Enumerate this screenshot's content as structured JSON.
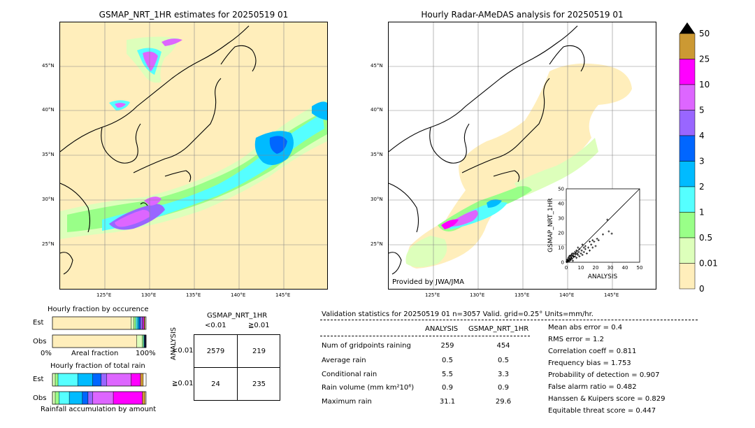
{
  "left_map": {
    "title": "GSMAP_NRT_1HR estimates for 20250519 01",
    "lat_labels": [
      "45°N",
      "40°N",
      "35°N",
      "30°N",
      "25°N"
    ],
    "lon_labels": [
      "125°E",
      "130°E",
      "135°E",
      "140°E",
      "145°E"
    ]
  },
  "right_map": {
    "title": "Hourly Radar-AMeDAS analysis for 20250519 01",
    "lat_labels": [
      "45°N",
      "40°N",
      "35°N",
      "30°N",
      "25°N"
    ],
    "lon_labels": [
      "125°E",
      "130°E",
      "135°E",
      "140°E",
      "145°E"
    ],
    "credit": "Provided by JWA/JMA"
  },
  "colorbar": {
    "labels": [
      "50",
      "25",
      "10",
      "5",
      "4",
      "3",
      "2",
      "1",
      "0.5",
      "0.01",
      "0"
    ],
    "colors": [
      "#cc9933",
      "#ff00ff",
      "#dd66ff",
      "#9966ff",
      "#0066ff",
      "#00bbff",
      "#55ffff",
      "#99ff88",
      "#ddffbb",
      "#ffeebb"
    ]
  },
  "chart_data": {
    "type": "scatter",
    "xlabel": "ANALYSIS",
    "ylabel": "GSMAP_NRT_1HR",
    "xlim": [
      0,
      50
    ],
    "ylim": [
      0,
      50
    ],
    "ticks": [
      "0",
      "10",
      "20",
      "30",
      "40",
      "50"
    ],
    "points": [
      [
        0.5,
        0.3
      ],
      [
        1,
        0.5
      ],
      [
        1.5,
        1.2
      ],
      [
        2,
        0.8
      ],
      [
        2.5,
        2
      ],
      [
        3,
        1.5
      ],
      [
        3.5,
        3
      ],
      [
        4,
        2.5
      ],
      [
        4.5,
        1
      ],
      [
        5,
        3.5
      ],
      [
        1,
        2
      ],
      [
        2,
        3
      ],
      [
        3,
        4
      ],
      [
        0.5,
        1.5
      ],
      [
        1.5,
        3
      ],
      [
        2.5,
        4.5
      ],
      [
        4,
        5
      ],
      [
        5,
        6
      ],
      [
        6,
        4
      ],
      [
        6.5,
        5.5
      ],
      [
        7,
        3
      ],
      [
        7.5,
        6
      ],
      [
        8,
        5
      ],
      [
        8.5,
        7
      ],
      [
        9,
        4
      ],
      [
        10,
        6
      ],
      [
        10.5,
        8
      ],
      [
        11,
        5
      ],
      [
        12,
        7
      ],
      [
        13,
        9
      ],
      [
        14,
        6
      ],
      [
        15,
        10
      ],
      [
        16,
        8
      ],
      [
        17,
        12
      ],
      [
        18,
        10
      ],
      [
        19,
        14
      ],
      [
        20,
        11
      ],
      [
        22,
        15
      ],
      [
        25,
        19
      ],
      [
        28,
        29
      ],
      [
        31,
        19.5
      ],
      [
        29,
        21
      ],
      [
        12,
        10
      ],
      [
        9,
        9
      ],
      [
        6,
        7
      ],
      [
        4,
        6
      ],
      [
        3,
        2
      ],
      [
        2,
        1
      ],
      [
        1,
        1
      ],
      [
        0.3,
        0.2
      ],
      [
        16,
        14
      ],
      [
        18,
        15
      ],
      [
        21,
        16
      ],
      [
        13,
        11
      ],
      [
        11,
        12
      ],
      [
        8,
        10
      ],
      [
        7,
        8
      ],
      [
        5,
        4
      ],
      [
        3.5,
        5
      ],
      [
        2,
        4
      ]
    ]
  },
  "occurrence": {
    "title": "Hourly fraction by occurence",
    "row_labels": [
      "Est",
      "Obs"
    ],
    "axis_left": "0%",
    "axis_mid": "Areal fraction",
    "axis_right": "100%",
    "est": [
      0.84,
      0.03,
      0.02,
      0.02,
      0.015,
      0.015,
      0.02,
      0.01,
      0.01,
      0.01
    ],
    "obs": [
      0.9,
      0.06,
      0.012,
      0.008,
      0.005,
      0.004,
      0.004,
      0.003,
      0.002,
      0.002
    ]
  },
  "total_rain": {
    "title": "Hourly fraction of total rain",
    "row_labels": [
      "Est",
      "Obs"
    ],
    "caption": "Rainfall accumulation by amount",
    "est": [
      0.0,
      0.03,
      0.03,
      0.21,
      0.16,
      0.09,
      0.06,
      0.26,
      0.1,
      0.03
    ],
    "obs": [
      0.0,
      0.03,
      0.04,
      0.11,
      0.14,
      0.06,
      0.05,
      0.22,
      0.31,
      0.03
    ]
  },
  "contingency": {
    "title": "GSMAP_NRT_1HR",
    "col_headers": [
      "<0.01",
      "≧0.01"
    ],
    "row_headers": [
      "<0.01",
      "≧0.01"
    ],
    "side_label": "ANALYSIS",
    "cells": [
      [
        "2579",
        "219"
      ],
      [
        "24",
        "235"
      ]
    ]
  },
  "validation": {
    "header": "Validation statistics for 20250519 01  n=3057 Valid. grid=0.25° Units=mm/hr.",
    "col1": "ANALYSIS",
    "col2": "GSMAP_NRT_1HR",
    "rows": [
      {
        "label": "Num of gridpoints raining",
        "a": "259",
        "g": "454"
      },
      {
        "label": "Average rain",
        "a": "0.5",
        "g": "0.5"
      },
      {
        "label": "Conditional rain",
        "a": "5.5",
        "g": "3.3"
      },
      {
        "label": "Rain volume (mm km²10⁶)",
        "a": "0.9",
        "g": "0.9"
      },
      {
        "label": "Maximum rain",
        "a": "31.1",
        "g": "29.6"
      }
    ],
    "scores": [
      "Mean abs error =    0.4",
      "RMS error =    1.2",
      "Correlation coeff =  0.811",
      "Frequency bias =  1.753",
      "Probability of detection =  0.907",
      "False alarm ratio =  0.482",
      "Hanssen & Kuipers score =  0.829",
      "Equitable threat score =  0.447"
    ]
  }
}
